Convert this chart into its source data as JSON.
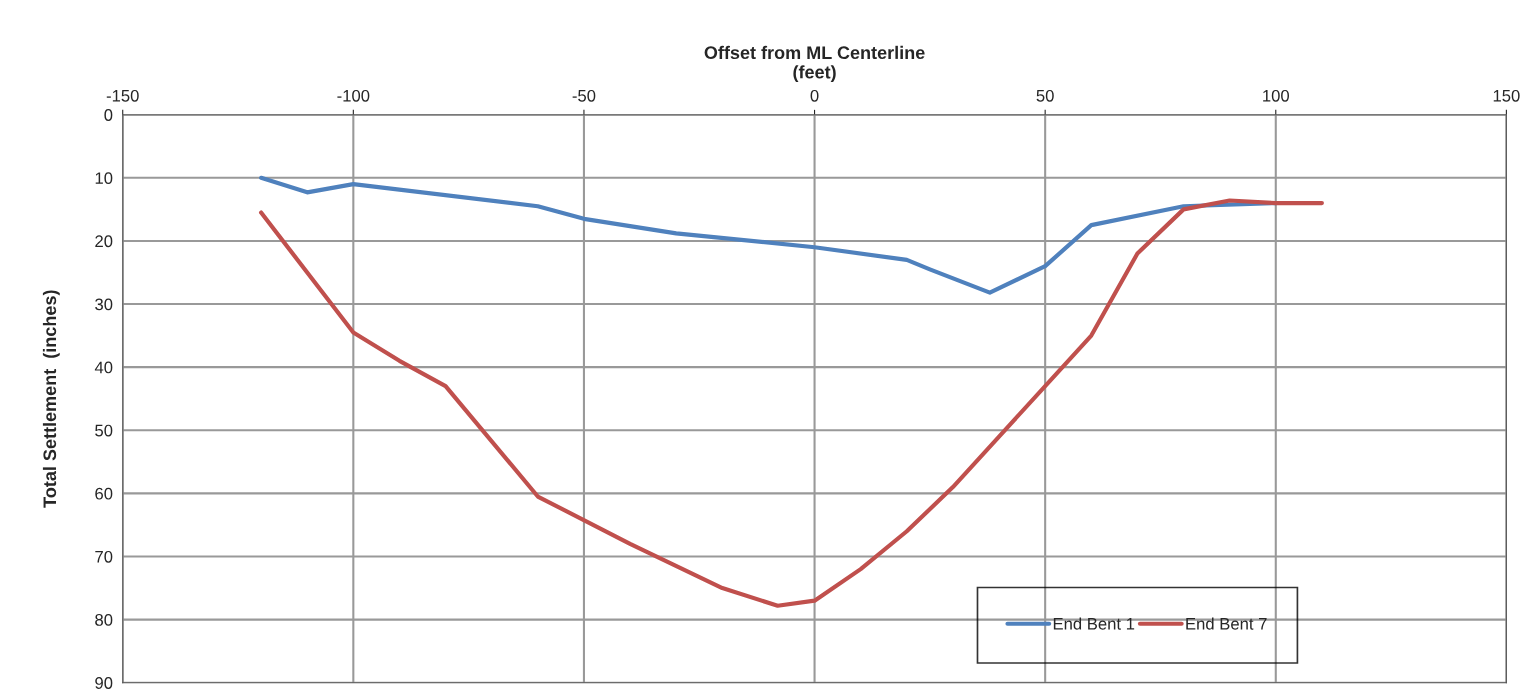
{
  "chart_data": {
    "type": "line",
    "xlabel": "Offset from ML Centerline\n(feet)",
    "ylabel": "Total Settlement  (inches)",
    "xlim": [
      -150,
      150
    ],
    "xticks": [
      -150,
      -100,
      -50,
      0,
      50,
      100,
      150
    ],
    "ylim": [
      90,
      0
    ],
    "yticks": [
      0,
      10,
      20,
      30,
      40,
      50,
      60,
      70,
      80,
      90
    ],
    "grid": true,
    "legend": "bottom right",
    "marker": "none",
    "line_style": "solid",
    "series": [
      {
        "name": "End Bent 1",
        "color": "#4f81bd",
        "x": [
          -120,
          -110,
          -100,
          -60,
          -50,
          -30,
          0,
          20,
          25,
          38,
          50,
          60,
          80,
          100
        ],
        "values": [
          10,
          12.3,
          11,
          14.5,
          16.5,
          18.8,
          21,
          23,
          24.5,
          28.2,
          24,
          17.5,
          14.5,
          14
        ]
      },
      {
        "name": "End Bent 7",
        "color": "#c0504d",
        "x": [
          -120,
          -110,
          -100,
          -90,
          -80,
          -60,
          -40,
          -20,
          -8,
          0,
          10,
          20,
          30,
          40,
          50,
          60,
          70,
          80,
          90,
          100,
          110
        ],
        "values": [
          15.5,
          25,
          34.5,
          39,
          43,
          60.5,
          68,
          75,
          77.8,
          77,
          72,
          66,
          59,
          51,
          43,
          35,
          22,
          15,
          13.6,
          14,
          14
        ]
      }
    ]
  }
}
